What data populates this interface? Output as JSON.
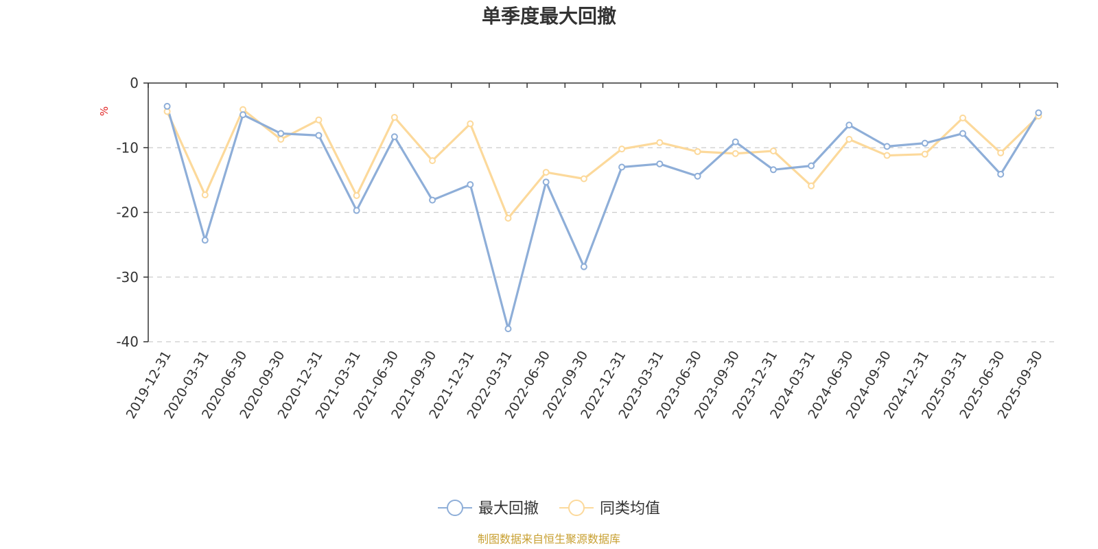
{
  "chart_data": {
    "type": "line",
    "title": "单季度最大回撤",
    "ylabel": "%",
    "ylim": [
      -40,
      0
    ],
    "yticks": [
      0,
      -10,
      -20,
      -30,
      -40
    ],
    "grid": true,
    "legend_position": "bottom-center",
    "categories": [
      "2019-12-31",
      "2020-03-31",
      "2020-06-30",
      "2020-09-30",
      "2020-12-31",
      "2021-03-31",
      "2021-06-30",
      "2021-09-30",
      "2021-12-31",
      "2022-03-31",
      "2022-06-30",
      "2022-09-30",
      "2022-12-31",
      "2023-03-31",
      "2023-06-30",
      "2023-09-30",
      "2023-12-31",
      "2024-03-31",
      "2024-06-30",
      "2024-09-30",
      "2024-12-31",
      "2025-03-31",
      "2025-06-30",
      "2025-09-30"
    ],
    "series": [
      {
        "name": "最大回撤",
        "color": "#8eaed8",
        "values": [
          -3.6,
          -24.3,
          -4.9,
          -7.8,
          -8.1,
          -19.7,
          -8.3,
          -18.1,
          -15.7,
          -38.0,
          -15.3,
          -28.4,
          -13.0,
          -12.5,
          -14.4,
          -9.1,
          -13.4,
          -12.8,
          -6.5,
          -9.8,
          -9.3,
          -7.8,
          -14.1,
          -4.6
        ]
      },
      {
        "name": "同类均值",
        "color": "#fcd99b",
        "values": [
          -4.4,
          -17.3,
          -4.1,
          -8.7,
          -5.7,
          -17.4,
          -5.3,
          -12.0,
          -6.3,
          -20.9,
          -13.8,
          -14.8,
          -10.2,
          -9.2,
          -10.6,
          -10.9,
          -10.5,
          -15.9,
          -8.7,
          -11.2,
          -11.0,
          -5.4,
          -10.8,
          -5.1
        ]
      }
    ]
  },
  "source_note": "制图数据来自恒生聚源数据库"
}
